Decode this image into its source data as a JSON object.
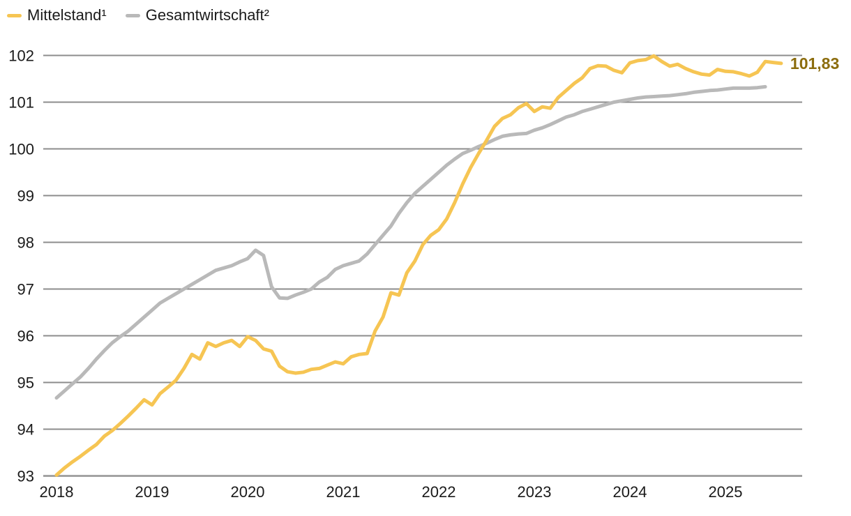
{
  "legend": {
    "items": [
      {
        "label": "Mittelstand¹",
        "color": "#F6C553"
      },
      {
        "label": "Gesamtwirtschaft²",
        "color": "#B9B9B9"
      }
    ]
  },
  "annotation": {
    "last_value_label": "101,83",
    "color": "#8C6D0E"
  },
  "chart_data": {
    "type": "line",
    "title": "",
    "xlabel": "",
    "ylabel": "",
    "x_start": "2018-01",
    "x_frequency": "monthly",
    "ylim": [
      93,
      102
    ],
    "y_ticks": [
      93,
      94,
      95,
      96,
      97,
      98,
      99,
      100,
      101,
      102
    ],
    "x_tick_labels": [
      "2018",
      "2019",
      "2020",
      "2021",
      "2022",
      "2023",
      "2024",
      "2025"
    ],
    "grid": true,
    "legend_position": "top-left",
    "series": [
      {
        "name": "Mittelstand¹",
        "color": "#F6C553",
        "values": [
          93.02,
          93.17,
          93.3,
          93.42,
          93.55,
          93.67,
          93.85,
          93.97,
          94.12,
          94.28,
          94.45,
          94.63,
          94.52,
          94.76,
          94.9,
          95.05,
          95.3,
          95.6,
          95.5,
          95.85,
          95.77,
          95.85,
          95.9,
          95.77,
          95.98,
          95.9,
          95.72,
          95.67,
          95.35,
          95.23,
          95.2,
          95.22,
          95.28,
          95.3,
          95.37,
          95.44,
          95.4,
          95.55,
          95.6,
          95.62,
          96.1,
          96.4,
          96.92,
          96.87,
          97.35,
          97.6,
          97.95,
          98.15,
          98.27,
          98.5,
          98.85,
          99.25,
          99.6,
          99.9,
          100.18,
          100.48,
          100.65,
          100.73,
          100.88,
          100.97,
          100.8,
          100.9,
          100.87,
          101.1,
          101.25,
          101.4,
          101.52,
          101.72,
          101.78,
          101.77,
          101.68,
          101.63,
          101.84,
          101.89,
          101.91,
          101.99,
          101.87,
          101.77,
          101.81,
          101.72,
          101.65,
          101.6,
          101.58,
          101.7,
          101.66,
          101.65,
          101.61,
          101.56,
          101.64,
          101.87,
          101.85,
          101.83
        ]
      },
      {
        "name": "Gesamtwirtschaft²",
        "color": "#B9B9B9",
        "values": [
          94.67,
          94.82,
          94.97,
          95.12,
          95.3,
          95.5,
          95.68,
          95.85,
          95.98,
          96.1,
          96.25,
          96.4,
          96.55,
          96.7,
          96.8,
          96.9,
          97.0,
          97.1,
          97.2,
          97.3,
          97.4,
          97.45,
          97.5,
          97.58,
          97.65,
          97.83,
          97.72,
          97.05,
          96.81,
          96.8,
          96.87,
          96.93,
          97.0,
          97.15,
          97.25,
          97.42,
          97.5,
          97.55,
          97.6,
          97.75,
          97.95,
          98.15,
          98.35,
          98.62,
          98.85,
          99.05,
          99.2,
          99.35,
          99.5,
          99.65,
          99.78,
          99.9,
          99.97,
          100.05,
          100.12,
          100.2,
          100.27,
          100.3,
          100.32,
          100.33,
          100.4,
          100.45,
          100.52,
          100.6,
          100.68,
          100.73,
          100.8,
          100.85,
          100.9,
          100.95,
          101.0,
          101.03,
          101.06,
          101.09,
          101.11,
          101.12,
          101.13,
          101.14,
          101.16,
          101.18,
          101.21,
          101.23,
          101.25,
          101.26,
          101.28,
          101.3,
          101.3,
          101.3,
          101.31,
          101.33
        ]
      }
    ]
  }
}
